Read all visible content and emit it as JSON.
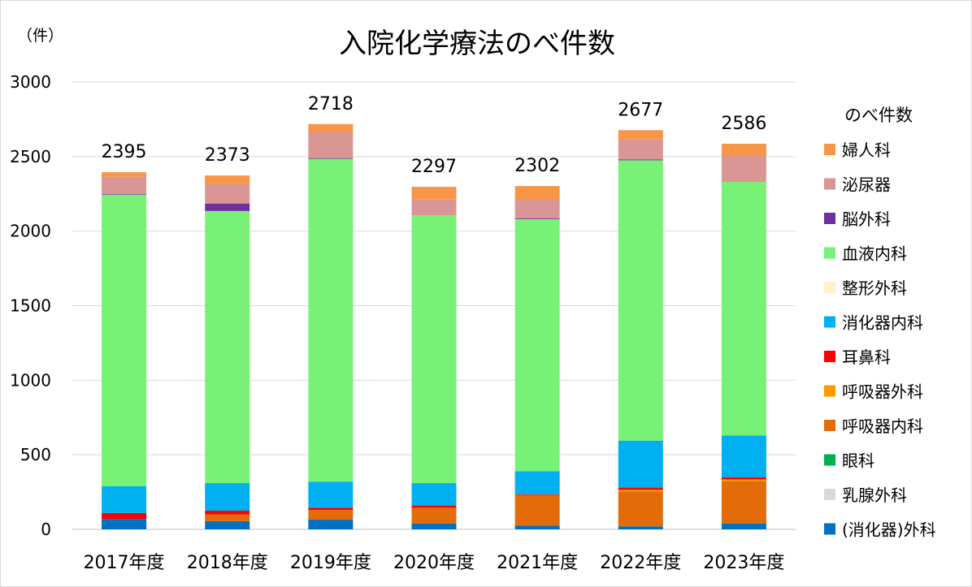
{
  "chart_data": {
    "type": "bar",
    "stacked": true,
    "title": "入院化学療法のべ件数",
    "unit_label": "（件）",
    "ylim": [
      0,
      3000
    ],
    "yticks": [
      0,
      500,
      1000,
      1500,
      2000,
      2500,
      3000
    ],
    "grid": true,
    "legend_title": "のべ件数",
    "legend_position": "right",
    "categories": [
      "2017年度",
      "2018年度",
      "2019年度",
      "2020年度",
      "2021年度",
      "2022年度",
      "2023年度"
    ],
    "totals": [
      2395,
      2373,
      2718,
      2297,
      2302,
      2677,
      2586
    ],
    "series": [
      {
        "name": "(消化器)外科",
        "color": "#0070C0",
        "values": [
          70,
          55,
          65,
          40,
          25,
          20,
          40
        ]
      },
      {
        "name": "乳腺外科",
        "color": "#D9D9D9",
        "values": [
          0,
          0,
          0,
          0,
          0,
          0,
          0
        ]
      },
      {
        "name": "眼科",
        "color": "#00B050",
        "values": [
          0,
          0,
          0,
          0,
          0,
          0,
          0
        ]
      },
      {
        "name": "呼吸器内科",
        "color": "#E36C09",
        "values": [
          0,
          45,
          65,
          105,
          205,
          235,
          285
        ]
      },
      {
        "name": "呼吸器外科",
        "color": "#FF9900",
        "values": [
          0,
          0,
          0,
          0,
          0,
          10,
          10
        ]
      },
      {
        "name": "耳鼻科",
        "color": "#FF0000",
        "values": [
          40,
          25,
          15,
          15,
          5,
          15,
          15
        ]
      },
      {
        "name": "消化器内科",
        "color": "#00B0F0",
        "values": [
          180,
          185,
          175,
          150,
          155,
          315,
          280
        ]
      },
      {
        "name": "整形外科",
        "color": "#FFF2CC",
        "values": [
          0,
          0,
          0,
          0,
          0,
          0,
          0
        ]
      },
      {
        "name": "血液内科",
        "color": "#77F277",
        "values": [
          1955,
          1825,
          2165,
          1795,
          1690,
          1880,
          1700
        ]
      },
      {
        "name": "脳外科",
        "color": "#7030A0",
        "values": [
          5,
          50,
          5,
          0,
          5,
          5,
          0
        ]
      },
      {
        "name": "泌尿器",
        "color": "#DA9694",
        "values": [
          115,
          130,
          175,
          110,
          125,
          135,
          180
        ]
      },
      {
        "name": "婦人科",
        "color": "#F79646",
        "values": [
          30,
          58,
          53,
          82,
          92,
          62,
          76
        ]
      }
    ]
  }
}
